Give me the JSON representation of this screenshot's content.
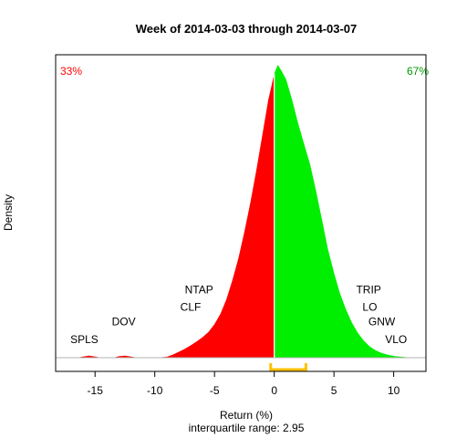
{
  "chart_data": {
    "type": "area",
    "title": "Week of 2014-03-03 through 2014-03-07",
    "xlabel": "Return (%)",
    "ylabel": "Density",
    "subtitle": "interquartile range: 2.95",
    "xlim": [
      -18.3,
      12.7
    ],
    "ylim": [
      0,
      1
    ],
    "x_ticks": [
      -15,
      -10,
      -5,
      0,
      5,
      10
    ],
    "x_tick_labels": [
      "-15",
      "-10",
      "-5",
      "0",
      "5",
      "10"
    ],
    "percent_negative": "33%",
    "percent_positive": "67%",
    "split_at": 0,
    "iqr_bracket": [
      -0.3,
      2.65
    ],
    "colors": {
      "negative": "#ff0000",
      "positive": "#00ee00",
      "iqr": "#ffc000",
      "pct_negative": "#ff0000",
      "pct_positive": "#009900"
    },
    "density": {
      "x": [
        -16.5,
        -16,
        -15.5,
        -15,
        -14.5,
        -13.5,
        -13,
        -12.5,
        -12,
        -11.5,
        -10,
        -9,
        -8.5,
        -8,
        -7.5,
        -7,
        -6.5,
        -6,
        -5.5,
        -5,
        -4.5,
        -4,
        -3.5,
        -3,
        -2.5,
        -2,
        -1.5,
        -1,
        -0.5,
        0,
        0.3,
        0.6,
        1,
        1.5,
        2,
        2.5,
        3,
        3.5,
        4,
        4.5,
        5,
        5.5,
        6,
        6.5,
        7,
        7.5,
        8,
        8.5,
        9,
        9.5,
        10,
        10.5,
        11,
        11.5
      ],
      "y": [
        0,
        0.004,
        0.007,
        0.004,
        0,
        0,
        0.005,
        0.007,
        0.004,
        0,
        0,
        0.003,
        0.01,
        0.02,
        0.03,
        0.042,
        0.055,
        0.07,
        0.088,
        0.115,
        0.15,
        0.2,
        0.265,
        0.34,
        0.43,
        0.53,
        0.64,
        0.76,
        0.88,
        0.97,
        1,
        0.98,
        0.95,
        0.88,
        0.8,
        0.73,
        0.66,
        0.57,
        0.47,
        0.37,
        0.29,
        0.22,
        0.165,
        0.12,
        0.085,
        0.058,
        0.038,
        0.025,
        0.016,
        0.01,
        0.006,
        0.004,
        0.002,
        0
      ]
    },
    "annotations": [
      {
        "label": "SPLS",
        "x": -15.9,
        "y": 0.05
      },
      {
        "label": "DOV",
        "x": -12.6,
        "y": 0.11
      },
      {
        "label": "NTAP",
        "x": -6.3,
        "y": 0.22
      },
      {
        "label": "CLF",
        "x": -7,
        "y": 0.16
      },
      {
        "label": "TRIP",
        "x": 7.9,
        "y": 0.22
      },
      {
        "label": "LO",
        "x": 8,
        "y": 0.16
      },
      {
        "label": "GNW",
        "x": 9,
        "y": 0.11
      },
      {
        "label": "VLO",
        "x": 10.2,
        "y": 0.05
      }
    ]
  }
}
